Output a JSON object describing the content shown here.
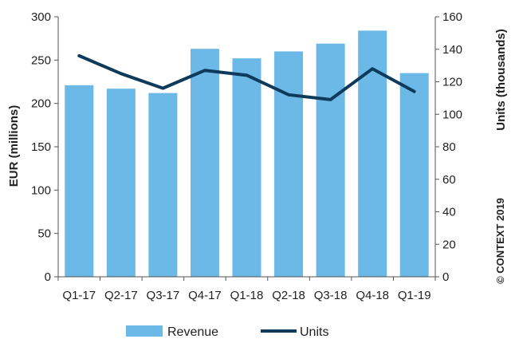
{
  "chart_data": {
    "type": "bar",
    "categories": [
      "Q1-17",
      "Q2-17",
      "Q3-17",
      "Q4-17",
      "Q1-18",
      "Q2-18",
      "Q3-18",
      "Q4-18",
      "Q1-19"
    ],
    "series": [
      {
        "name": "Revenue",
        "type": "bar",
        "axis": "left",
        "color": "#6cb8e6",
        "values": [
          221,
          217,
          212,
          263,
          252,
          260,
          269,
          284,
          235
        ]
      },
      {
        "name": "Units",
        "type": "line",
        "axis": "right",
        "color": "#0e3a5c",
        "values": [
          136,
          125,
          116,
          127,
          124,
          112,
          109,
          128,
          114
        ]
      }
    ],
    "ylabel": "EUR (millions)",
    "y2label": "Units (thousands)",
    "ylim": [
      0,
      300
    ],
    "y2lim": [
      0,
      160
    ],
    "yticks": [
      "0",
      "50",
      "100",
      "150",
      "200",
      "250",
      "300"
    ],
    "y2ticks": [
      "0",
      "20",
      "40",
      "60",
      "80",
      "100",
      "120",
      "140",
      "160"
    ],
    "grid": false,
    "legend_position": "bottom"
  },
  "copyright": "© CONTEXT 2019"
}
